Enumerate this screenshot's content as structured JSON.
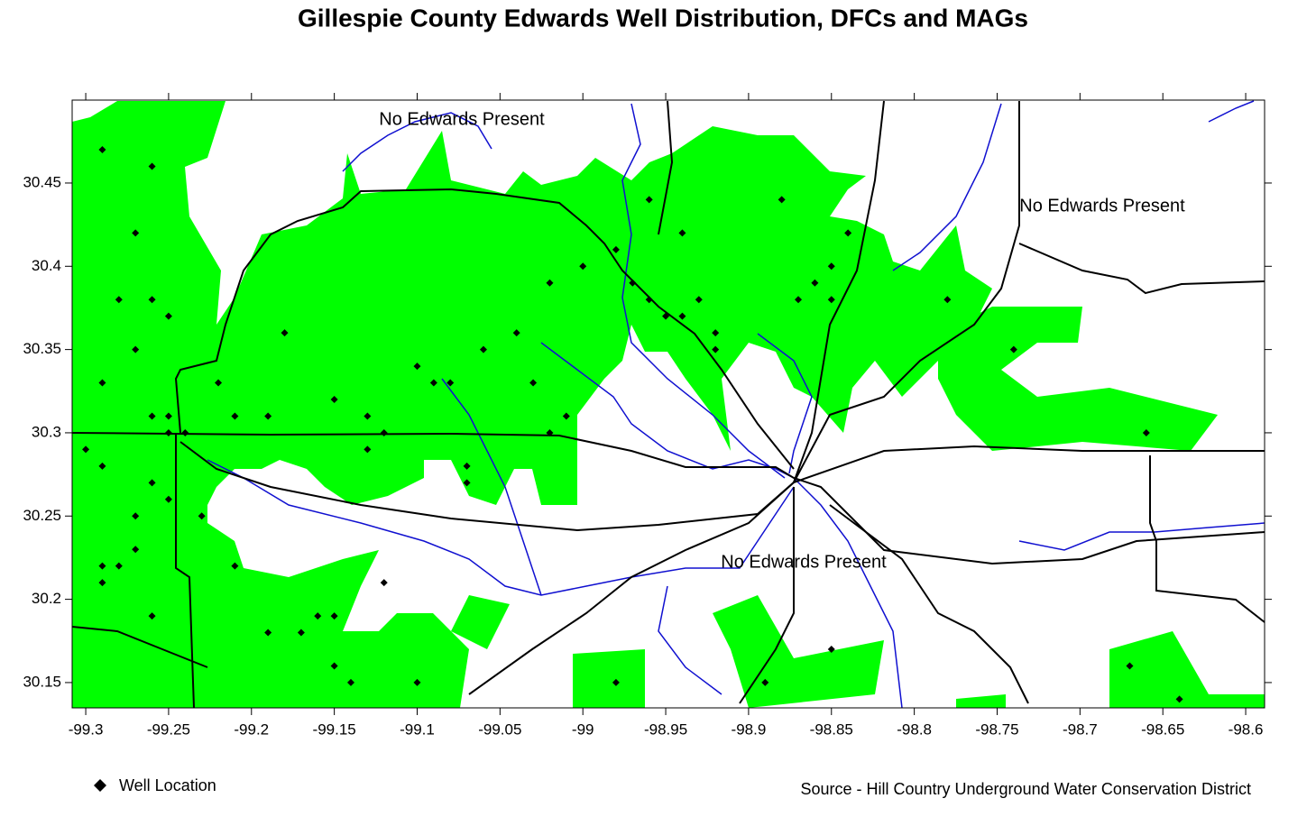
{
  "chart_data": {
    "type": "scatter",
    "title": "Gillespie County Edwards Well Distribution, DFCs and MAGs",
    "annotations": [
      "No Edwards Present",
      "No Edwards Present",
      "No Edwards Present"
    ],
    "source": "Source - Hill Country Underground Water Conservation District",
    "xlim": [
      -99.3082,
      -98.5886
    ],
    "ylim": [
      30.1348,
      30.4998
    ],
    "xticks": [
      -99.3,
      -99.25,
      -99.2,
      -99.15,
      -99.1,
      -99.05,
      -99,
      -98.95,
      -98.9,
      -98.85,
      -98.8,
      -98.75,
      -98.7,
      -98.65,
      -98.6
    ],
    "yticks": [
      30.15,
      30.2,
      30.25,
      30.3,
      30.35,
      30.4,
      30.45
    ],
    "series": [
      {
        "name": "Well Location",
        "color": "#000000",
        "x": [
          -99.29,
          -99.27,
          -99.26,
          -99.28,
          -99.26,
          -99.25,
          -99.27,
          -99.29,
          -99.26,
          -99.25,
          -99.25,
          -99.24,
          -99.26,
          -99.25,
          -99.27,
          -99.3,
          -99.29,
          -99.29,
          -99.28,
          -99.29,
          -99.27,
          -99.26,
          -99.22,
          -99.21,
          -99.19,
          -99.18,
          -99.15,
          -99.13,
          -99.12,
          -99.13,
          -99.1,
          -99.09,
          -99.08,
          -99.07,
          -99.07,
          -99.06,
          -99.04,
          -99.03,
          -99.02,
          -99.01,
          -99.02,
          -99.0,
          -98.98,
          -98.97,
          -98.96,
          -98.95,
          -98.94,
          -98.93,
          -98.92,
          -98.92,
          -98.94,
          -98.96,
          -98.87,
          -98.85,
          -98.86,
          -98.85,
          -98.84,
          -98.88,
          -98.78,
          -98.74,
          -98.66,
          -99.16,
          -99.17,
          -99.15,
          -99.15,
          -99.14,
          -99.19,
          -99.21,
          -99.23,
          -99.12,
          -99.1,
          -98.98,
          -98.89,
          -98.85,
          -98.64,
          -98.67
        ],
        "y": [
          30.47,
          30.42,
          30.46,
          30.38,
          30.38,
          30.37,
          30.35,
          30.33,
          30.31,
          30.3,
          30.31,
          30.3,
          30.27,
          30.26,
          30.25,
          30.29,
          30.28,
          30.22,
          30.22,
          30.21,
          30.23,
          30.19,
          30.33,
          30.31,
          30.31,
          30.36,
          30.32,
          30.31,
          30.3,
          30.29,
          30.34,
          30.33,
          30.33,
          30.28,
          30.27,
          30.35,
          30.36,
          30.33,
          30.3,
          30.31,
          30.39,
          30.4,
          30.41,
          30.39,
          30.38,
          30.37,
          30.37,
          30.38,
          30.36,
          30.35,
          30.42,
          30.44,
          30.38,
          30.4,
          30.39,
          30.38,
          30.42,
          30.44,
          30.38,
          30.35,
          30.3,
          30.19,
          30.18,
          30.19,
          30.16,
          30.15,
          30.18,
          30.22,
          30.25,
          30.21,
          30.15,
          30.15,
          30.15,
          30.17,
          30.14,
          30.16
        ]
      }
    ]
  }
}
